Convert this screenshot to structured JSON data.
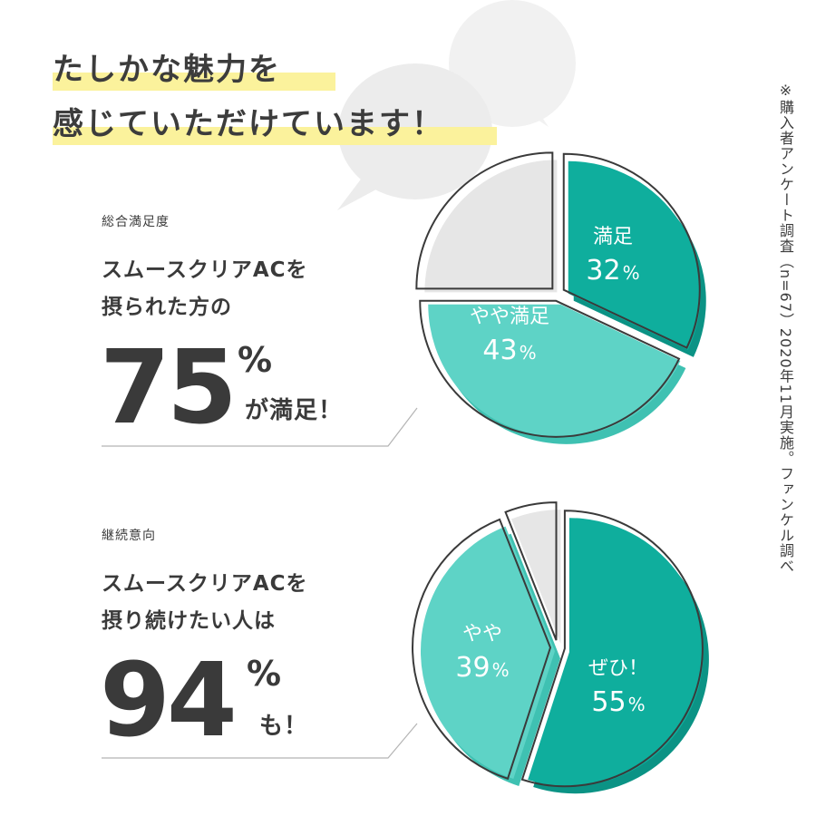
{
  "headline": {
    "line1": "たしかな魅力を",
    "line2": "感じていただけています！"
  },
  "sections": [
    {
      "label": "総合満足度",
      "lead": [
        "スムースクリアACを",
        "摂られた方の"
      ],
      "big_number": "75",
      "percent_sign": "%",
      "suffix": "が満足！"
    },
    {
      "label": "継続意向",
      "lead": [
        "スムースクリアACを",
        "摂り続けたい人は"
      ],
      "big_number": "94",
      "percent_sign": "%",
      "suffix": "も！"
    }
  ],
  "note": "※購入者アンケート調査（n=67）2020年11月実施。ファンケル調べ",
  "colors": {
    "dark_teal": "#0fae9d",
    "light_teal": "#5ed3c6",
    "gray": "#e6e6e6",
    "highlight": "#fbf29c",
    "text": "#3c3c3c"
  },
  "chart_data": [
    {
      "type": "pie",
      "title": "総合満足度",
      "slices": [
        {
          "label": "満足",
          "value": 32,
          "value_text": "32",
          "unit": "%",
          "color": "#0fae9d"
        },
        {
          "label": "やや満足",
          "value": 43,
          "value_text": "43",
          "unit": "%",
          "color": "#5ed3c6"
        },
        {
          "label": "",
          "value": 25,
          "color": "#e6e6e6"
        }
      ]
    },
    {
      "type": "pie",
      "title": "継続意向",
      "slices": [
        {
          "label": "ぜひ！",
          "value": 55,
          "value_text": "55",
          "unit": "%",
          "color": "#0fae9d"
        },
        {
          "label": "やや",
          "value": 39,
          "value_text": "39",
          "unit": "%",
          "color": "#5ed3c6"
        },
        {
          "label": "",
          "value": 6,
          "color": "#e6e6e6"
        }
      ]
    }
  ]
}
